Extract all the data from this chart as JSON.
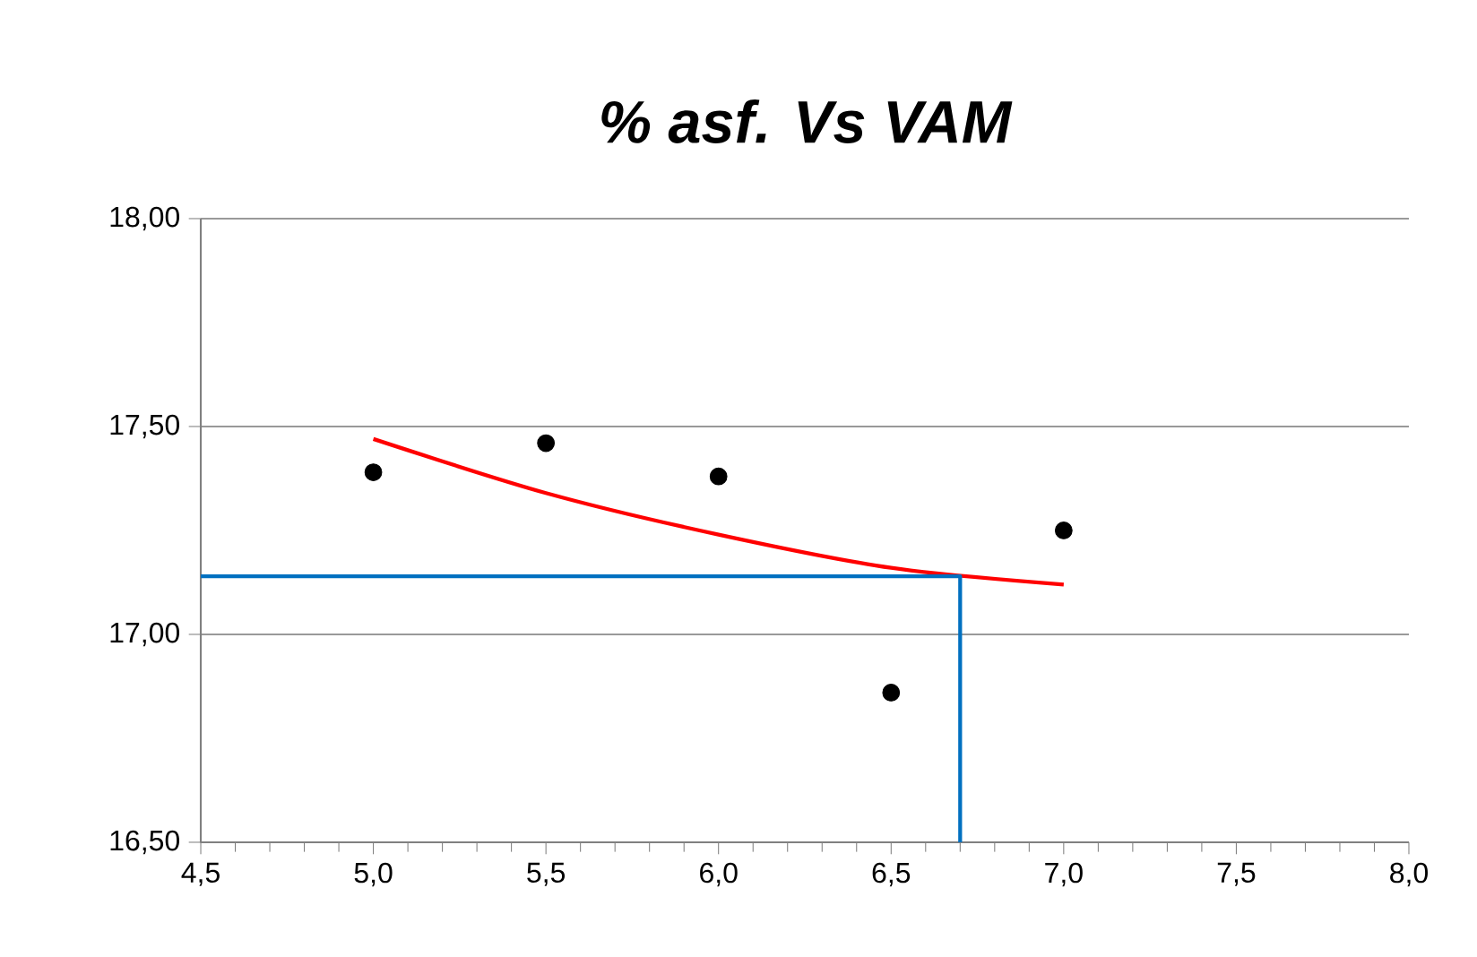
{
  "chart_data": {
    "type": "scatter",
    "title": "% asf. Vs VAM",
    "series": [
      {
        "color": "#000000",
        "marker": "circle",
        "x": [
          5.0,
          5.5,
          6.0,
          6.5,
          7.0
        ],
        "values": [
          17.39,
          17.46,
          17.38,
          16.86,
          17.25
        ]
      },
      {
        "type": "line",
        "color": "#ff0000",
        "marker": "none",
        "x": [
          5.0,
          5.5,
          6.0,
          6.5,
          7.0
        ],
        "values": [
          17.47,
          17.34,
          17.24,
          17.16,
          17.12
        ]
      },
      {
        "type": "line",
        "color": "#0070c0",
        "marker": "none",
        "x": [
          4.5,
          6.7,
          6.7
        ],
        "values": [
          17.14,
          17.14,
          16.5
        ]
      }
    ],
    "xlim": [
      4.5,
      8.0
    ],
    "xticks": [
      {
        "value": 4.5,
        "label": "4,5"
      },
      {
        "value": 5.0,
        "label": "5,0"
      },
      {
        "value": 5.5,
        "label": "5,5"
      },
      {
        "value": 6.0,
        "label": "6,0"
      },
      {
        "value": 6.5,
        "label": "6,5"
      },
      {
        "value": 7.0,
        "label": "7,0"
      },
      {
        "value": 7.5,
        "label": "7,5"
      },
      {
        "value": 8.0,
        "label": "8,0"
      }
    ],
    "ylim": [
      16.5,
      18.0
    ],
    "yticks": [
      {
        "value": 16.5,
        "label": "16,50"
      },
      {
        "value": 17.0,
        "label": "17,00"
      },
      {
        "value": 17.5,
        "label": "17,50"
      },
      {
        "value": 18.0,
        "label": "18,00"
      }
    ],
    "grid": "y"
  }
}
